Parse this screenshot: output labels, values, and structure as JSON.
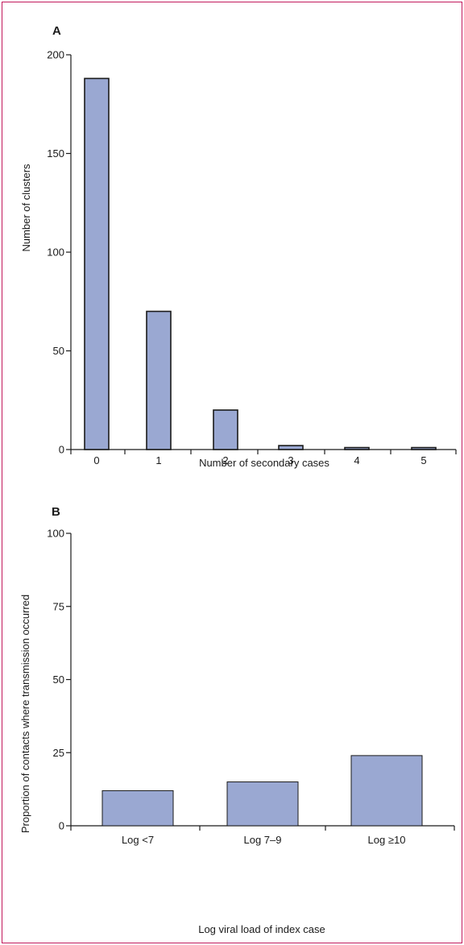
{
  "colors": {
    "bar_fill": "#9aa8d2",
    "bar_stroke": "#1a1a1a",
    "axis": "#1a1a1a",
    "frame": "#c2185b"
  },
  "chart_data": [
    {
      "panel": "A",
      "type": "bar",
      "categories": [
        "0",
        "1",
        "2",
        "3",
        "4",
        "5"
      ],
      "values": [
        188,
        70,
        20,
        2,
        1,
        1
      ],
      "xlabel": "Number of secondary cases",
      "ylabel": "Number of clusters",
      "ylim": [
        0,
        200
      ],
      "yticks": [
        "0",
        "50",
        "100",
        "150",
        "200"
      ],
      "grid": false,
      "legend": "none"
    },
    {
      "panel": "B",
      "type": "bar",
      "categories": [
        "Log <7",
        "Log 7–9",
        "Log ≥10"
      ],
      "values": [
        12,
        15,
        24
      ],
      "xlabel": "Log viral load of index case",
      "ylabel": "Proportion of contacts where transmission occurred",
      "ylim": [
        0,
        100
      ],
      "yticks": [
        "0",
        "25",
        "50",
        "75",
        "100"
      ],
      "grid": false,
      "legend": "none"
    }
  ]
}
